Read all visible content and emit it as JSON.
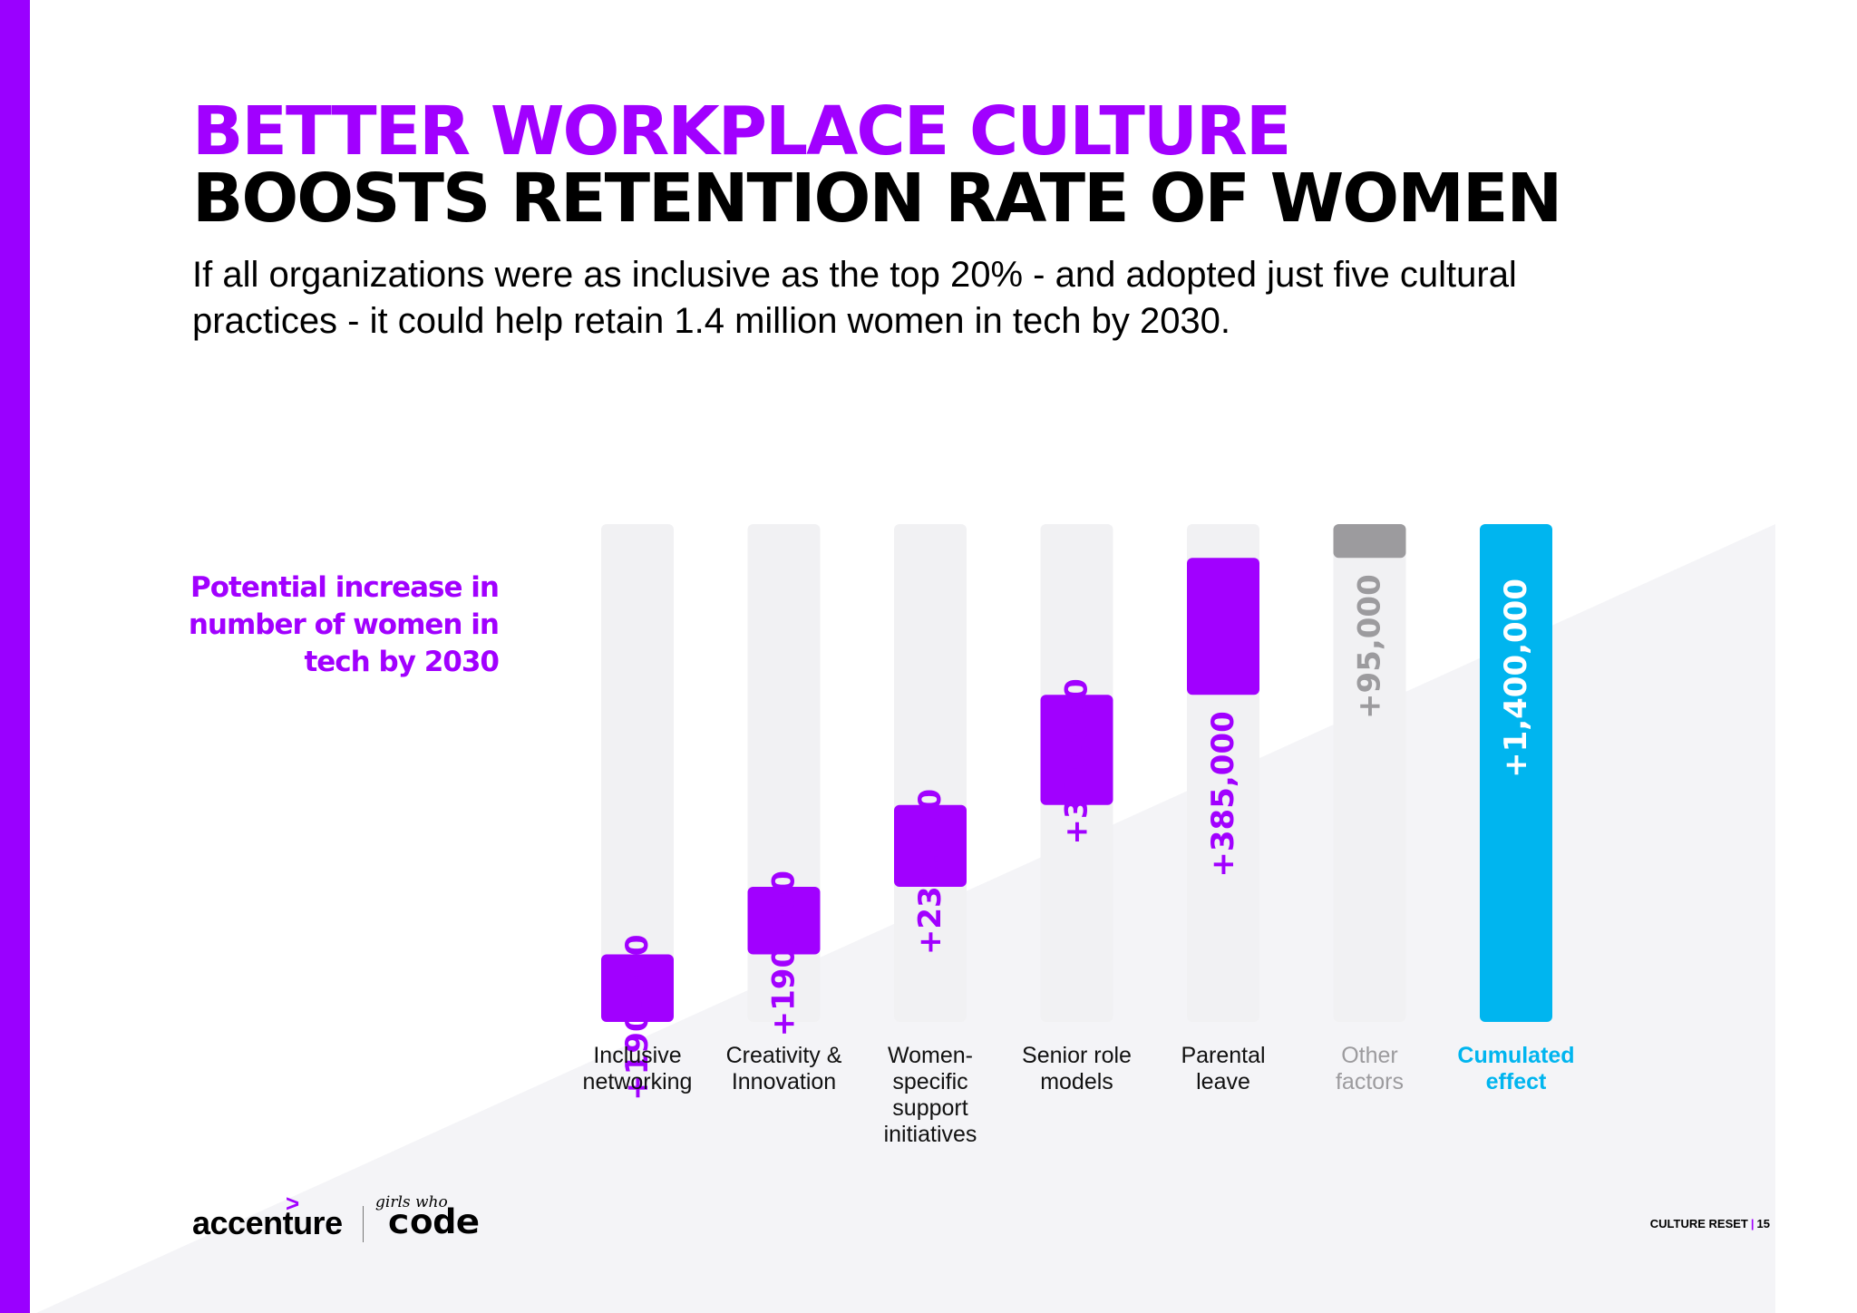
{
  "header": {
    "title_line1": "BETTER WORKPLACE CULTURE",
    "title_line2": "BOOSTS RETENTION RATE OF WOMEN",
    "subtitle": "If all organizations were as inclusive as the top 20% - and adopted just five cultural practices - it could help retain 1.4 million women in tech by 2030."
  },
  "colors": {
    "brand_purple": "#a100ff",
    "other_gray": "#9c9b9e",
    "cumulated_blue": "#00b5ef",
    "track_gray": "#f1f1f3"
  },
  "chart_data": {
    "type": "bar",
    "subtype": "waterfall",
    "title": "",
    "ylabel": "Potential increase in number of women in tech by 2030",
    "ylim": [
      0,
      1400000
    ],
    "grid": false,
    "legend": "none",
    "categories": [
      "Inclusive networking",
      "Creativity & Innovation",
      "Women-specific support initiatives",
      "Senior role models",
      "Parental leave",
      "Other factors",
      "Cumulated effect"
    ],
    "category_lines": [
      [
        "Inclusive",
        "networking"
      ],
      [
        "Creativity &",
        "Innovation"
      ],
      [
        "Women-",
        "specific",
        "support",
        "initiatives"
      ],
      [
        "Senior role",
        "models"
      ],
      [
        "Parental",
        "leave"
      ],
      [
        "Other",
        "factors"
      ],
      [
        "Cumulated",
        "effect"
      ]
    ],
    "values": [
      190000,
      190000,
      230000,
      310000,
      385000,
      95000,
      1400000
    ],
    "data_labels": [
      "+190,000",
      "+190,000",
      "+230,000",
      "+310,000",
      "+385,000",
      "+95,000",
      "+1,400,000"
    ],
    "kinds": [
      "step",
      "step",
      "step",
      "step",
      "step",
      "other",
      "total"
    ]
  },
  "footer": {
    "logo_accenture": "accenture",
    "logo_gwc_small": "girls who",
    "logo_gwc_big": "code",
    "section": "CULTURE RESET",
    "separator": "|",
    "page_number": "15"
  }
}
